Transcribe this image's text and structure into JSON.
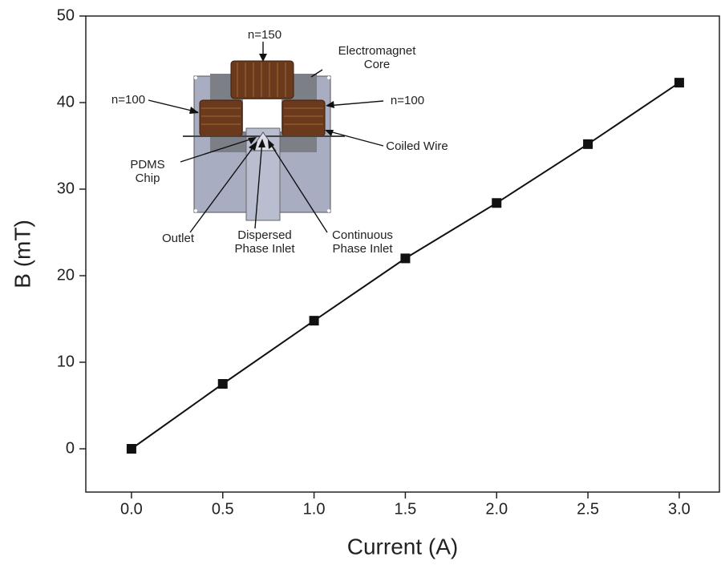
{
  "chart_data": {
    "type": "line",
    "xlabel": "Current (A)",
    "ylabel": "B (mT)",
    "x": [
      0,
      0.5,
      1,
      1.5,
      2,
      2.5,
      3
    ],
    "values": [
      0,
      7.5,
      14.8,
      22,
      28.4,
      35.2,
      42.3
    ],
    "color": "#111111",
    "xlim": [
      -0.25,
      3.22
    ],
    "ylim": [
      -5,
      50
    ],
    "xticks": [
      {
        "value": 0,
        "label": "0.0"
      },
      {
        "value": 0.5,
        "label": "0.5"
      },
      {
        "value": 1,
        "label": "1.0"
      },
      {
        "value": 1.5,
        "label": "1.5"
      },
      {
        "value": 2,
        "label": "2.0"
      },
      {
        "value": 2.5,
        "label": "2.5"
      },
      {
        "value": 3,
        "label": "3.0"
      }
    ],
    "yticks": [
      0,
      10,
      20,
      30,
      40,
      50
    ],
    "annotations": [
      [
        "n=150"
      ],
      [
        "Electromagnet",
        "Core"
      ],
      [
        "n=100"
      ],
      [
        "n=100"
      ],
      [
        "Coiled Wire"
      ],
      [
        "PDMS",
        "Chip"
      ],
      [
        "Outlet"
      ],
      [
        "Dispersed",
        "Phase Inlet"
      ],
      [
        "Continuous",
        "Phase Inlet"
      ]
    ]
  }
}
